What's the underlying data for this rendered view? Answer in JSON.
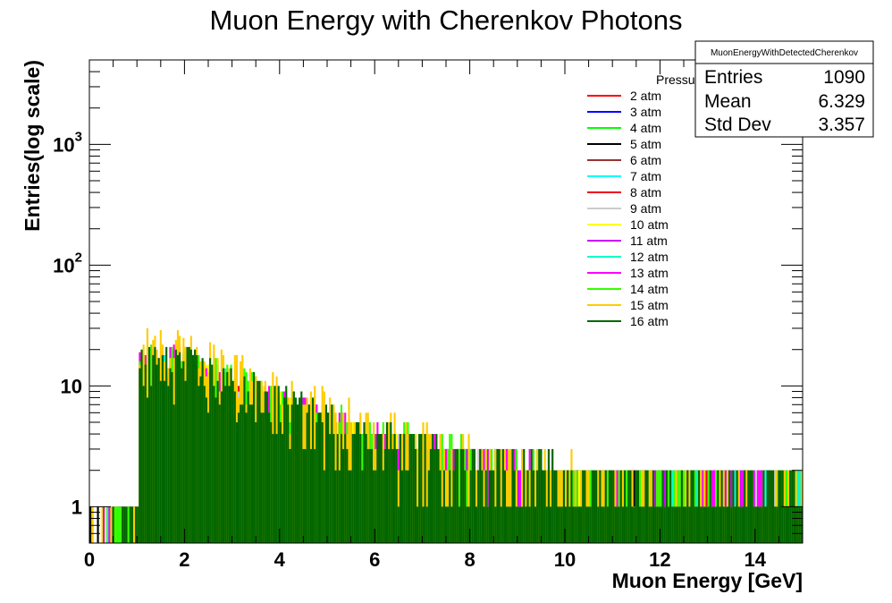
{
  "chart_data": {
    "type": "bar",
    "title": "Muon Energy with Cherenkov Photons",
    "xlabel": "Muon Energy [GeV]",
    "ylabel": "Entries(log scale)",
    "xlim": [
      0,
      15
    ],
    "ylim": [
      0.5,
      5000
    ],
    "yscale": "log",
    "bin_width": 0.04,
    "x_ticks": [
      0,
      2,
      4,
      6,
      8,
      10,
      12,
      14
    ],
    "y_ticks": [
      {
        "value": 1,
        "label": "1",
        "sup": ""
      },
      {
        "value": 10,
        "label": "10",
        "sup": ""
      },
      {
        "value": 100,
        "label": "10",
        "sup": "2"
      },
      {
        "value": 1000,
        "label": "10",
        "sup": "3"
      }
    ],
    "legend": {
      "title": "Pressure",
      "placement": "top-right"
    },
    "stats_box": {
      "name": "MuonEnergyWithDetectedCherenkov",
      "rows": [
        {
          "label": "Entries",
          "value": "1090"
        },
        {
          "label": "Mean",
          "value": "6.329"
        },
        {
          "label": "Std Dev",
          "value": "3.357"
        }
      ]
    },
    "series": [
      {
        "name": "2 atm",
        "color": "#ff0000",
        "peak": 7.0
      },
      {
        "name": "3 atm",
        "color": "#0000ff",
        "peak": 7.5
      },
      {
        "name": "4 atm",
        "color": "#00ff00",
        "peak": 9.0
      },
      {
        "name": "5 atm",
        "color": "#000000",
        "peak": 8.0
      },
      {
        "name": "6 atm",
        "color": "#993333",
        "peak": 9.5
      },
      {
        "name": "7 atm",
        "color": "#00ffff",
        "peak": 10.0
      },
      {
        "name": "8 atm",
        "color": "#ee0022",
        "peak": 10.5
      },
      {
        "name": "9 atm",
        "color": "#cccccc",
        "peak": 11.0
      },
      {
        "name": "10 atm",
        "color": "#ffff00",
        "peak": 12.0
      },
      {
        "name": "11 atm",
        "color": "#cc00ff",
        "peak": 13.0
      },
      {
        "name": "12 atm",
        "color": "#00ffcc",
        "peak": 13.5
      },
      {
        "name": "13 atm",
        "color": "#ff00ff",
        "peak": 14.0
      },
      {
        "name": "14 atm",
        "color": "#33ff00",
        "peak": 16.0
      },
      {
        "name": "15 atm",
        "color": "#ffcc00",
        "peak": 20.0
      },
      {
        "name": "16 atm",
        "color": "#006600",
        "peak": 15.0
      }
    ]
  }
}
